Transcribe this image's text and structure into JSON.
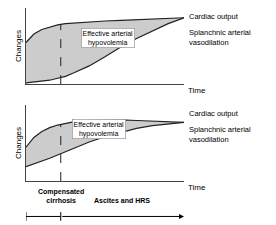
{
  "chart_data": [
    {
      "type": "area",
      "x_label": "Time",
      "y_label": "Changes",
      "x": [
        0.0,
        0.05,
        0.1,
        0.15,
        0.2,
        0.25,
        0.3,
        0.4,
        0.5,
        0.6,
        0.7,
        0.8,
        0.9,
        1.0
      ],
      "series": [
        {
          "name": "Cardiac output",
          "color": "#222222",
          "values": [
            0.62,
            0.75,
            0.82,
            0.86,
            0.89,
            0.91,
            0.92,
            0.94,
            0.95,
            0.96,
            0.97,
            0.98,
            0.99,
            1.0
          ]
        },
        {
          "name": "Splanchnic arterial\nvasodilation",
          "color": "#222222",
          "values": [
            0.0,
            0.01,
            0.02,
            0.04,
            0.07,
            0.1,
            0.15,
            0.26,
            0.4,
            0.55,
            0.68,
            0.8,
            0.91,
            1.0
          ]
        }
      ],
      "color": "#cccccc",
      "vline": 0.22,
      "annotations": [
        {
          "text": "Effective arterial\nhypovolemia",
          "x": 0.52
        }
      ],
      "xlim": [
        0.0,
        1.0
      ],
      "ylim": [
        -0.02,
        1.15
      ],
      "tick_labels": false,
      "grid": false
    },
    {
      "type": "area",
      "x_label": "Time",
      "y_label": "Changes",
      "x": [
        0.0,
        0.05,
        0.1,
        0.15,
        0.2,
        0.25,
        0.3,
        0.4,
        0.5,
        0.6,
        0.7,
        0.8,
        0.9,
        1.0
      ],
      "series": [
        {
          "name": "Cardiac output",
          "color": "#222222",
          "values": [
            0.5,
            0.65,
            0.74,
            0.8,
            0.84,
            0.87,
            0.89,
            0.91,
            0.92,
            0.92,
            0.91,
            0.9,
            0.89,
            0.88
          ]
        },
        {
          "name": "Splanchnic arterial\nvasodilation",
          "color": "#222222",
          "values": [
            0.2,
            0.24,
            0.28,
            0.33,
            0.38,
            0.43,
            0.49,
            0.58,
            0.66,
            0.73,
            0.79,
            0.83,
            0.86,
            0.88
          ]
        }
      ],
      "color": "#cccccc",
      "vline": 0.22,
      "annotations": [
        {
          "text": "Effective arterial\nhypovolemia",
          "x": 0.46
        }
      ],
      "phase_labels": [
        "Compensated\ncirrhosis",
        "Ascites and HRS"
      ],
      "xlim": [
        0.0,
        1.0
      ],
      "ylim": [
        -0.02,
        1.15
      ],
      "tick_labels": false,
      "grid": false
    }
  ]
}
